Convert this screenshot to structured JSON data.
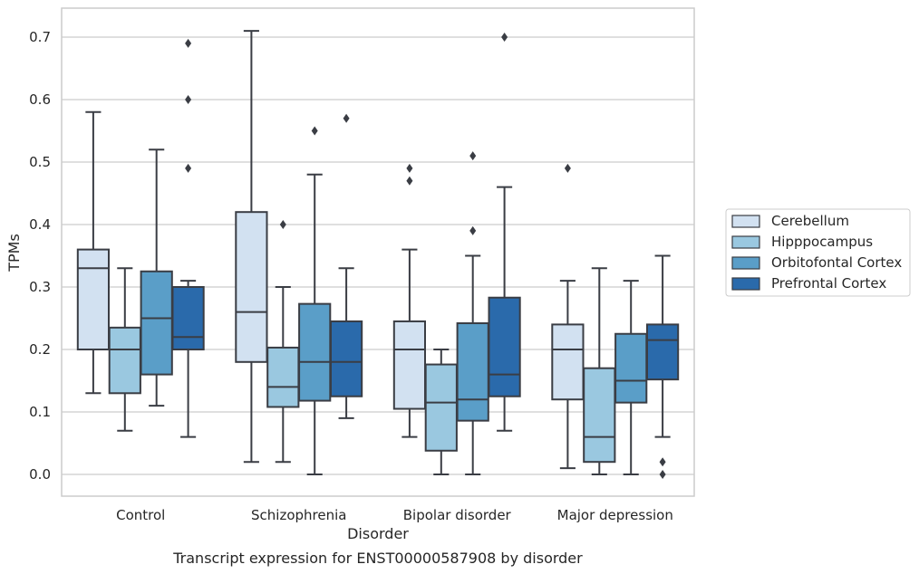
{
  "chart_data": {
    "type": "box",
    "categories": [
      "Control",
      "Schizophrenia",
      "Bipolar disorder",
      "Major depression"
    ],
    "xlabel": "Disorder",
    "ylabel": "TPMs",
    "caption": "Transcript expression for ENST00000587908 by disorder",
    "ylim": [
      -0.035,
      0.745
    ],
    "yticks": [
      0.0,
      0.1,
      0.2,
      0.3,
      0.4,
      0.5,
      0.6,
      0.7
    ],
    "ytick_labels": [
      "0.0",
      "0.1",
      "0.2",
      "0.3",
      "0.4",
      "0.5",
      "0.6",
      "0.7"
    ],
    "grid": "horizontal",
    "legend_position": "right",
    "series": [
      {
        "name": "Cerebellum",
        "color": "#d2e1f1",
        "boxes": [
          {
            "whislo": 0.13,
            "q1": 0.2,
            "median": 0.33,
            "q3": 0.36,
            "whishi": 0.58,
            "fliers": []
          },
          {
            "whislo": 0.02,
            "q1": 0.18,
            "median": 0.26,
            "q3": 0.42,
            "whishi": 0.71,
            "fliers": []
          },
          {
            "whislo": 0.06,
            "q1": 0.105,
            "median": 0.2,
            "q3": 0.245,
            "whishi": 0.36,
            "fliers": [
              0.47,
              0.49
            ]
          },
          {
            "whislo": 0.01,
            "q1": 0.12,
            "median": 0.2,
            "q3": 0.24,
            "whishi": 0.31,
            "fliers": [
              0.49
            ]
          }
        ]
      },
      {
        "name": "Hipppocampus",
        "color": "#9ac8e0",
        "boxes": [
          {
            "whislo": 0.07,
            "q1": 0.13,
            "median": 0.2,
            "q3": 0.235,
            "whishi": 0.33,
            "fliers": []
          },
          {
            "whislo": 0.02,
            "q1": 0.108,
            "median": 0.14,
            "q3": 0.203,
            "whishi": 0.3,
            "fliers": [
              0.4
            ]
          },
          {
            "whislo": 0.0,
            "q1": 0.038,
            "median": 0.115,
            "q3": 0.176,
            "whishi": 0.2,
            "fliers": []
          },
          {
            "whislo": 0.0,
            "q1": 0.02,
            "median": 0.06,
            "q3": 0.17,
            "whishi": 0.33,
            "fliers": []
          }
        ]
      },
      {
        "name": "Orbitofontal Cortex",
        "color": "#5a9ec8",
        "boxes": [
          {
            "whislo": 0.11,
            "q1": 0.16,
            "median": 0.25,
            "q3": 0.325,
            "whishi": 0.52,
            "fliers": []
          },
          {
            "whislo": 0.0,
            "q1": 0.118,
            "median": 0.18,
            "q3": 0.273,
            "whishi": 0.48,
            "fliers": [
              0.55
            ]
          },
          {
            "whislo": 0.0,
            "q1": 0.086,
            "median": 0.12,
            "q3": 0.242,
            "whishi": 0.35,
            "fliers": [
              0.39,
              0.51
            ]
          },
          {
            "whislo": 0.0,
            "q1": 0.115,
            "median": 0.15,
            "q3": 0.225,
            "whishi": 0.31,
            "fliers": []
          }
        ]
      },
      {
        "name": "Prefrontal Cortex",
        "color": "#2a6aab",
        "boxes": [
          {
            "whislo": 0.06,
            "q1": 0.2,
            "median": 0.22,
            "q3": 0.3,
            "whishi": 0.31,
            "fliers": [
              0.49,
              0.6,
              0.69
            ]
          },
          {
            "whislo": 0.09,
            "q1": 0.125,
            "median": 0.18,
            "q3": 0.245,
            "whishi": 0.33,
            "fliers": [
              0.57
            ]
          },
          {
            "whislo": 0.07,
            "q1": 0.125,
            "median": 0.16,
            "q3": 0.283,
            "whishi": 0.46,
            "fliers": [
              0.7
            ]
          },
          {
            "whislo": 0.06,
            "q1": 0.152,
            "median": 0.215,
            "q3": 0.24,
            "whishi": 0.35,
            "fliers": [
              0.0,
              0.02
            ]
          }
        ]
      }
    ]
  }
}
